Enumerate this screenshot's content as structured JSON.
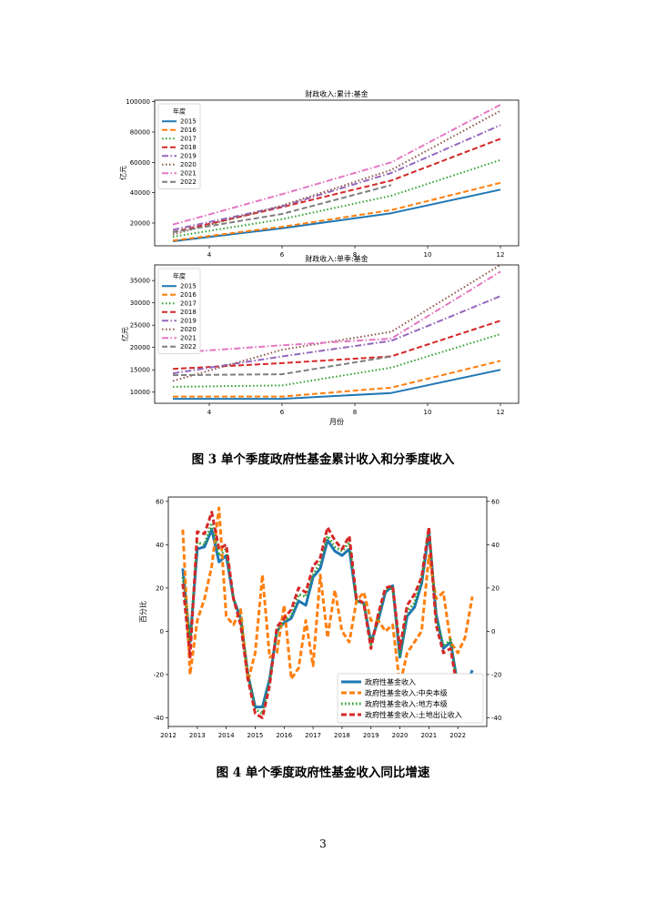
{
  "page_number": "3",
  "captions": {
    "fig3": "图 3   单个季度政府性基金累计收入和分季度收入",
    "fig4": "图 4   单个季度政府性基金收入同比增速"
  },
  "chart_data": [
    {
      "type": "line",
      "title": "财政收入:累计:基金",
      "ylabel": "亿元",
      "xlabel": "",
      "legend_title": "年度",
      "legend_position": "top-left",
      "x": [
        3,
        6,
        9,
        12
      ],
      "xticks": [
        4,
        6,
        8,
        10,
        12
      ],
      "yticks": [
        20000,
        40000,
        60000,
        80000,
        100000
      ],
      "xlim": [
        2.5,
        12.5
      ],
      "ylim": [
        5000,
        101000
      ],
      "series": [
        {
          "name": "2015",
          "color": "#1f77b4",
          "dash": "solid",
          "values": [
            8000,
            16500,
            26500,
            42000
          ]
        },
        {
          "name": "2016",
          "color": "#ff7f0e",
          "dash": "dashed",
          "values": [
            8500,
            17500,
            28500,
            46500
          ]
        },
        {
          "name": "2017",
          "color": "#2ca02c",
          "dash": "dotted",
          "values": [
            11000,
            22500,
            38000,
            61500
          ]
        },
        {
          "name": "2018",
          "color": "#d62728",
          "dash": "dashed",
          "values": [
            14000,
            30500,
            48000,
            75500
          ]
        },
        {
          "name": "2019",
          "color": "#9467bd",
          "dash": "dashdot",
          "values": [
            15500,
            31000,
            53000,
            84500
          ]
        },
        {
          "name": "2020",
          "color": "#8c564b",
          "dash": "dotted",
          "values": [
            12500,
            31500,
            55000,
            94000
          ]
        },
        {
          "name": "2021",
          "color": "#e377c2",
          "dash": "dashdot",
          "values": [
            19000,
            39000,
            60000,
            98000
          ]
        },
        {
          "name": "2022",
          "color": "#7f7f7f",
          "dash": "dashed",
          "values": [
            14000,
            26000,
            45000,
            null
          ]
        }
      ]
    },
    {
      "type": "line",
      "title": "财政收入:单季:基金",
      "ylabel": "亿元",
      "xlabel": "月份",
      "legend_title": "年度",
      "legend_position": "top-left",
      "x": [
        3,
        6,
        9,
        12
      ],
      "xticks": [
        4,
        6,
        8,
        10,
        12
      ],
      "yticks": [
        10000,
        15000,
        20000,
        25000,
        30000,
        35000
      ],
      "xlim": [
        2.5,
        12.5
      ],
      "ylim": [
        7500,
        38500
      ],
      "series": [
        {
          "name": "2015",
          "color": "#1f77b4",
          "dash": "solid",
          "values": [
            8500,
            8500,
            9800,
            15000
          ]
        },
        {
          "name": "2016",
          "color": "#ff7f0e",
          "dash": "dashed",
          "values": [
            9000,
            9000,
            11000,
            17000
          ]
        },
        {
          "name": "2017",
          "color": "#2ca02c",
          "dash": "dotted",
          "values": [
            11200,
            11500,
            15500,
            23000
          ]
        },
        {
          "name": "2018",
          "color": "#d62728",
          "dash": "dashed",
          "values": [
            15200,
            16500,
            18000,
            26000
          ]
        },
        {
          "name": "2019",
          "color": "#9467bd",
          "dash": "dashdot",
          "values": [
            14200,
            18000,
            21500,
            31500
          ]
        },
        {
          "name": "2020",
          "color": "#8c564b",
          "dash": "dotted",
          "values": [
            12500,
            19500,
            23500,
            38500
          ]
        },
        {
          "name": "2021",
          "color": "#e377c2",
          "dash": "dashdot",
          "values": [
            18800,
            20500,
            22000,
            37000
          ]
        },
        {
          "name": "2022",
          "color": "#7f7f7f",
          "dash": "dashed",
          "values": [
            13800,
            14000,
            18000,
            null
          ]
        }
      ]
    },
    {
      "type": "line",
      "title": "",
      "ylabel": "百分比",
      "xlabel": "",
      "legend_position": "bottom-right",
      "xticks": [
        2012,
        2013,
        2014,
        2015,
        2016,
        2017,
        2018,
        2019,
        2020,
        2021,
        2022
      ],
      "yticks": [
        -40,
        -20,
        0,
        20,
        40,
        60
      ],
      "xlim": [
        2012.0,
        2023.0
      ],
      "ylim": [
        -44,
        62
      ],
      "series": [
        {
          "name": "政府性基金收入",
          "color": "#1f77b4",
          "dash": "solid",
          "x": [
            2012.5,
            2012.75,
            2013.0,
            2013.25,
            2013.5,
            2013.75,
            2014.0,
            2014.25,
            2014.5,
            2014.75,
            2015.0,
            2015.25,
            2015.5,
            2015.75,
            2016.0,
            2016.25,
            2016.5,
            2016.75,
            2017.0,
            2017.25,
            2017.5,
            2017.75,
            2018.0,
            2018.25,
            2018.5,
            2018.75,
            2019.0,
            2019.25,
            2019.5,
            2019.75,
            2020.0,
            2020.25,
            2020.5,
            2020.75,
            2021.0,
            2021.25,
            2021.5,
            2021.75,
            2022.0,
            2022.25,
            2022.5
          ],
          "values": [
            29,
            -5,
            38,
            39,
            47,
            32,
            35,
            15,
            6,
            -20,
            -35,
            -35,
            -22,
            0,
            4,
            6,
            14,
            12,
            25,
            29,
            42,
            37,
            35,
            38,
            14,
            13,
            -5,
            5,
            18,
            21,
            -12,
            7,
            11,
            22,
            46,
            8,
            -8,
            -5,
            -25,
            -27,
            -18
          ]
        },
        {
          "name": "政府性基金收入:中央本级",
          "color": "#ff7f0e",
          "dash": "dashed",
          "x": [
            2012.5,
            2012.75,
            2013.0,
            2013.25,
            2013.5,
            2013.75,
            2014.0,
            2014.25,
            2014.5,
            2014.75,
            2015.0,
            2015.25,
            2015.5,
            2015.75,
            2016.0,
            2016.25,
            2016.5,
            2016.75,
            2017.0,
            2017.25,
            2017.5,
            2017.75,
            2018.0,
            2018.25,
            2018.5,
            2018.75,
            2019.0,
            2019.25,
            2019.5,
            2019.75,
            2020.0,
            2020.25,
            2020.5,
            2020.75,
            2021.0,
            2021.25,
            2021.5,
            2021.75,
            2022.0,
            2022.25,
            2022.5
          ],
          "values": [
            47,
            -20,
            5,
            15,
            30,
            57,
            7,
            3,
            10,
            -23,
            -10,
            26,
            -12,
            -10,
            12,
            -22,
            -17,
            5,
            -16,
            26,
            -3,
            19,
            0,
            -5,
            14,
            18,
            5,
            5,
            0,
            3,
            -25,
            -10,
            -5,
            0,
            35,
            15,
            18,
            -5,
            -10,
            -3,
            16
          ]
        },
        {
          "name": "政府性基金收入:地方本级",
          "color": "#2ca02c",
          "dash": "dotted",
          "x": [
            2012.5,
            2012.75,
            2013.0,
            2013.25,
            2013.5,
            2013.75,
            2014.0,
            2014.25,
            2014.5,
            2014.75,
            2015.0,
            2015.25,
            2015.5,
            2015.75,
            2016.0,
            2016.25,
            2016.5,
            2016.75,
            2017.0,
            2017.25,
            2017.5,
            2017.75,
            2018.0,
            2018.25,
            2018.5,
            2018.75,
            2019.0,
            2019.25,
            2019.5,
            2019.75,
            2020.0,
            2020.25,
            2020.5,
            2020.75,
            2021.0,
            2021.25,
            2021.5,
            2021.75,
            2022.0,
            2022.25,
            2022.5
          ],
          "values": [
            25,
            -5,
            41,
            40,
            50,
            35,
            38,
            15,
            5,
            -20,
            -36,
            -38,
            -23,
            0,
            5,
            7,
            17,
            16,
            26,
            32,
            44,
            39,
            37,
            41,
            14,
            13,
            -6,
            6,
            19,
            20,
            -11,
            9,
            13,
            24,
            48,
            7,
            -7,
            -4,
            -27,
            -30,
            -20
          ]
        },
        {
          "name": "政府性基金收入:土地出让收入",
          "color": "#d62728",
          "dash": "dashed",
          "x": [
            2012.5,
            2012.75,
            2013.0,
            2013.25,
            2013.5,
            2013.75,
            2014.0,
            2014.25,
            2014.5,
            2014.75,
            2015.0,
            2015.25,
            2015.5,
            2015.75,
            2016.0,
            2016.25,
            2016.5,
            2016.75,
            2017.0,
            2017.25,
            2017.5,
            2017.75,
            2018.0,
            2018.25,
            2018.5,
            2018.75,
            2019.0,
            2019.25,
            2019.5,
            2019.75,
            2020.0,
            2020.25,
            2020.5,
            2020.75,
            2021.0,
            2021.25,
            2021.5,
            2021.75,
            2022.0,
            2022.25,
            2022.5
          ],
          "values": [
            22,
            -12,
            46,
            45,
            55,
            38,
            40,
            15,
            3,
            -22,
            -38,
            -40,
            -25,
            2,
            6,
            10,
            20,
            18,
            30,
            34,
            48,
            42,
            38,
            44,
            15,
            13,
            -8,
            8,
            20,
            21,
            -8,
            12,
            17,
            25,
            48,
            3,
            -10,
            -8,
            -28,
            -32,
            -22
          ]
        }
      ]
    }
  ]
}
